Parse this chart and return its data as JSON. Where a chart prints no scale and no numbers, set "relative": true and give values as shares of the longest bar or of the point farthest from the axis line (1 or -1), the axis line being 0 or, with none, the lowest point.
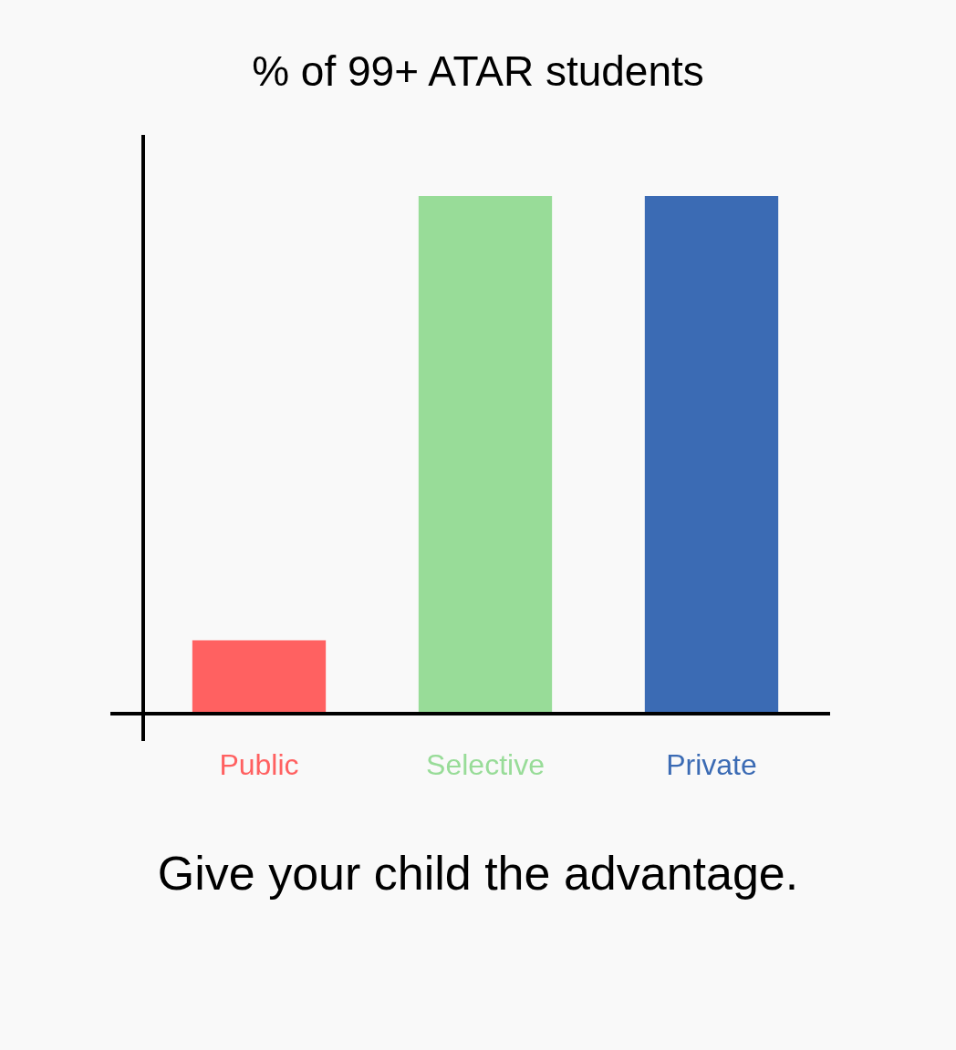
{
  "chart_data": {
    "type": "bar",
    "title": "% of 99+ ATAR students",
    "annotations": [
      "Give your child the advantage."
    ],
    "categories": [
      "Public",
      "Selective",
      "Private"
    ],
    "values": [
      0.14,
      1,
      1
    ],
    "colors": [
      "#ff6161",
      "#98dc98",
      "#3b6bb4"
    ],
    "relative": true
  }
}
